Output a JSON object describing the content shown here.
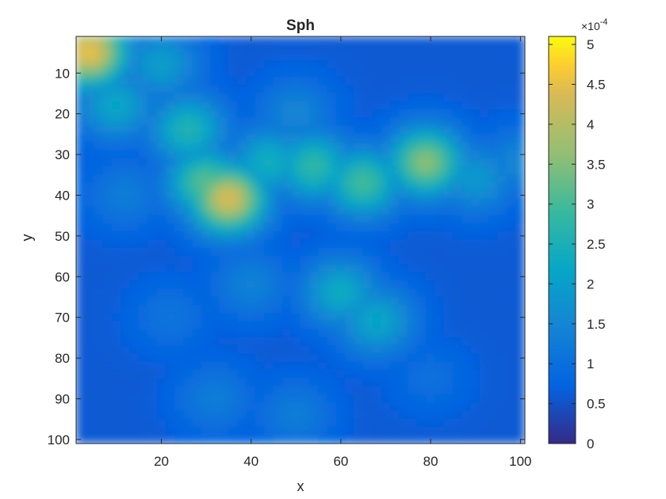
{
  "chart_data": {
    "type": "heatmap",
    "title": "Sph",
    "xlabel": "x",
    "ylabel": "y",
    "xlim": [
      1,
      101
    ],
    "ylim": [
      1,
      101
    ],
    "y_direction": "reversed",
    "x_ticks": [
      20,
      40,
      60,
      80,
      100
    ],
    "y_ticks": [
      10,
      20,
      30,
      40,
      50,
      60,
      70,
      80,
      90,
      100
    ],
    "colormap": "parula",
    "colorbar": {
      "exponent_label": "×10",
      "exponent": "-4",
      "scale": 0.0001,
      "range": [
        0,
        5.1
      ],
      "ticks": [
        0,
        0.5,
        1,
        1.5,
        2,
        2.5,
        3,
        3.5,
        4,
        4.5,
        5
      ]
    },
    "background_level": 0.6,
    "features": [
      {
        "x": 4,
        "y": 5,
        "value": 4.6
      },
      {
        "x": 35,
        "y": 41,
        "value": 4.4
      },
      {
        "x": 30,
        "y": 37,
        "value": 3.2
      },
      {
        "x": 79,
        "y": 32,
        "value": 3.6
      },
      {
        "x": 65,
        "y": 37,
        "value": 3.0
      },
      {
        "x": 54,
        "y": 33,
        "value": 2.8
      },
      {
        "x": 44,
        "y": 32,
        "value": 2.4
      },
      {
        "x": 90,
        "y": 36,
        "value": 1.9
      },
      {
        "x": 100,
        "y": 32,
        "value": 1.5
      },
      {
        "x": 26,
        "y": 24,
        "value": 2.6
      },
      {
        "x": 60,
        "y": 64,
        "value": 2.3
      },
      {
        "x": 68,
        "y": 71,
        "value": 2.2
      },
      {
        "x": 10,
        "y": 18,
        "value": 2.2
      },
      {
        "x": 20,
        "y": 8,
        "value": 2.0
      },
      {
        "x": 12,
        "y": 40,
        "value": 1.3
      },
      {
        "x": 40,
        "y": 62,
        "value": 1.4
      },
      {
        "x": 32,
        "y": 90,
        "value": 1.3
      },
      {
        "x": 50,
        "y": 94,
        "value": 1.3
      },
      {
        "x": 22,
        "y": 70,
        "value": 1.1
      },
      {
        "x": 80,
        "y": 85,
        "value": 1.0
      },
      {
        "x": 50,
        "y": 20,
        "value": 1.5
      }
    ]
  }
}
